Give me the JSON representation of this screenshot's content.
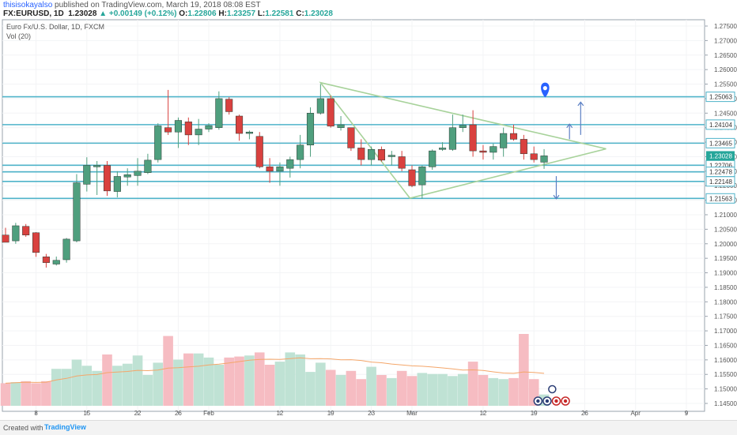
{
  "header": {
    "username": "thisisokayalso",
    "published_text": " published on TradingView.com, March 19, 2018 08:08 EST",
    "symbol": "FX:EURUSD, 1D",
    "last": "1.23028",
    "change": "+0.00149 (+0.12%)",
    "o_label": "O:",
    "o_value": "1.22806",
    "h_label": "H:",
    "h_value": "1.23257",
    "l_label": "L:",
    "l_value": "1.22581",
    "c_label": "C:",
    "c_value": "1.23028"
  },
  "legend": {
    "title": "Euro Fx/U.S. Dollar, 1D, FXCM",
    "volume": "Vol (20)"
  },
  "footer": {
    "created_with": "Created with",
    "brand": "TradingView"
  },
  "colors": {
    "up": "#4f9f7e",
    "down": "#d9413f",
    "vol_up": "#bfe2d4",
    "vol_down": "#f6bcc2",
    "hline": "#4fb3c9",
    "triangle": "#a7d29a",
    "ma": "#f4a66a",
    "arrow": "#5b7fc4",
    "pin": "#2962ff",
    "badge": "#26a69a"
  },
  "chart_data": {
    "type": "candlestick",
    "symbol": "EURUSD",
    "timeframe": "1D",
    "y_ticks": [
      "1.27500",
      "1.27000",
      "1.26500",
      "1.26000",
      "1.25500",
      "1.25000",
      "1.24500",
      "1.24000",
      "1.23500",
      "1.23000",
      "1.22500",
      "1.22000",
      "1.21500",
      "1.21000",
      "1.20500",
      "1.20000",
      "1.19500",
      "1.19000",
      "1.18500",
      "1.18000",
      "1.17500",
      "1.17000",
      "1.16500",
      "1.16000",
      "1.15500",
      "1.15000",
      "1.14500"
    ],
    "x_ticks": [
      {
        "label": "8",
        "index": 3
      },
      {
        "label": "15",
        "index": 8
      },
      {
        "label": "22",
        "index": 13
      },
      {
        "label": "26",
        "index": 17
      },
      {
        "label": "Feb",
        "index": 20
      },
      {
        "label": "12",
        "index": 27
      },
      {
        "label": "19",
        "index": 32
      },
      {
        "label": "23",
        "index": 36
      },
      {
        "label": "Mar",
        "index": 40
      },
      {
        "label": "12",
        "index": 47
      },
      {
        "label": "19",
        "index": 52
      },
      {
        "label": "26",
        "index": 57
      },
      {
        "label": "Apr",
        "index": 62
      },
      {
        "label": "9",
        "index": 67
      }
    ],
    "horizontal_levels": [
      "1.25063",
      "1.24104",
      "1.23465",
      "1.22706",
      "1.22478",
      "1.22148",
      "1.21563"
    ],
    "current_price": "1.23028",
    "candles": [
      {
        "o": 1.203,
        "h": 1.2055,
        "l": 1.201,
        "c": 1.2005,
        "v": 0.22
      },
      {
        "o": 1.201,
        "h": 1.2072,
        "l": 1.2,
        "c": 1.2062,
        "v": 0.23
      },
      {
        "o": 1.206,
        "h": 1.2068,
        "l": 1.2024,
        "c": 1.203,
        "v": 0.24
      },
      {
        "o": 1.2038,
        "h": 1.204,
        "l": 1.1955,
        "c": 1.197,
        "v": 0.22
      },
      {
        "o": 1.1955,
        "h": 1.1965,
        "l": 1.1918,
        "c": 1.1935,
        "v": 0.24
      },
      {
        "o": 1.193,
        "h": 1.1956,
        "l": 1.1925,
        "c": 1.1943,
        "v": 0.36
      },
      {
        "o": 1.1945,
        "h": 1.202,
        "l": 1.1935,
        "c": 1.2016,
        "v": 0.36
      },
      {
        "o": 1.201,
        "h": 1.224,
        "l": 1.2005,
        "c": 1.221,
        "v": 0.45
      },
      {
        "o": 1.2205,
        "h": 1.2298,
        "l": 1.218,
        "c": 1.227,
        "v": 0.39
      },
      {
        "o": 1.2265,
        "h": 1.2285,
        "l": 1.2168,
        "c": 1.227,
        "v": 0.34
      },
      {
        "o": 1.227,
        "h": 1.2285,
        "l": 1.2165,
        "c": 1.2182,
        "v": 0.5
      },
      {
        "o": 1.218,
        "h": 1.225,
        "l": 1.216,
        "c": 1.2232,
        "v": 0.39
      },
      {
        "o": 1.223,
        "h": 1.226,
        "l": 1.22,
        "c": 1.2238,
        "v": 0.41
      },
      {
        "o": 1.2235,
        "h": 1.2295,
        "l": 1.22,
        "c": 1.225,
        "v": 0.49
      },
      {
        "o": 1.2245,
        "h": 1.231,
        "l": 1.224,
        "c": 1.2288,
        "v": 0.3
      },
      {
        "o": 1.229,
        "h": 1.2415,
        "l": 1.228,
        "c": 1.2406,
        "v": 0.42
      },
      {
        "o": 1.24,
        "h": 1.253,
        "l": 1.2375,
        "c": 1.2385,
        "v": 0.68
      },
      {
        "o": 1.2385,
        "h": 1.2435,
        "l": 1.233,
        "c": 1.2425,
        "v": 0.45
      },
      {
        "o": 1.242,
        "h": 1.2435,
        "l": 1.234,
        "c": 1.2375,
        "v": 0.51
      },
      {
        "o": 1.2375,
        "h": 1.243,
        "l": 1.234,
        "c": 1.2395,
        "v": 0.51
      },
      {
        "o": 1.2395,
        "h": 1.2415,
        "l": 1.2385,
        "c": 1.2407,
        "v": 0.47
      },
      {
        "o": 1.24,
        "h": 1.2525,
        "l": 1.2393,
        "c": 1.25,
        "v": 0.4
      },
      {
        "o": 1.2498,
        "h": 1.2505,
        "l": 1.2445,
        "c": 1.2455,
        "v": 0.47
      },
      {
        "o": 1.244,
        "h": 1.2445,
        "l": 1.2355,
        "c": 1.238,
        "v": 0.48
      },
      {
        "o": 1.238,
        "h": 1.239,
        "l": 1.236,
        "c": 1.2385,
        "v": 0.49
      },
      {
        "o": 1.237,
        "h": 1.2385,
        "l": 1.226,
        "c": 1.2265,
        "v": 0.52
      },
      {
        "o": 1.2265,
        "h": 1.2295,
        "l": 1.221,
        "c": 1.225,
        "v": 0.4
      },
      {
        "o": 1.225,
        "h": 1.228,
        "l": 1.22,
        "c": 1.2265,
        "v": 0.43
      },
      {
        "o": 1.226,
        "h": 1.23,
        "l": 1.2228,
        "c": 1.229,
        "v": 0.52
      },
      {
        "o": 1.229,
        "h": 1.2375,
        "l": 1.226,
        "c": 1.234,
        "v": 0.5
      },
      {
        "o": 1.234,
        "h": 1.247,
        "l": 1.23,
        "c": 1.245,
        "v": 0.33
      },
      {
        "o": 1.245,
        "h": 1.255,
        "l": 1.2445,
        "c": 1.25,
        "v": 0.42
      },
      {
        "o": 1.25,
        "h": 1.251,
        "l": 1.24,
        "c": 1.2405,
        "v": 0.35
      },
      {
        "o": 1.24,
        "h": 1.244,
        "l": 1.239,
        "c": 1.241,
        "v": 0.3
      },
      {
        "o": 1.24,
        "h": 1.24,
        "l": 1.232,
        "c": 1.233,
        "v": 0.34
      },
      {
        "o": 1.233,
        "h": 1.236,
        "l": 1.227,
        "c": 1.229,
        "v": 0.26
      },
      {
        "o": 1.229,
        "h": 1.2335,
        "l": 1.227,
        "c": 1.2325,
        "v": 0.38
      },
      {
        "o": 1.2325,
        "h": 1.2335,
        "l": 1.2283,
        "c": 1.2288,
        "v": 0.3
      },
      {
        "o": 1.23,
        "h": 1.232,
        "l": 1.227,
        "c": 1.2305,
        "v": 0.27
      },
      {
        "o": 1.23,
        "h": 1.232,
        "l": 1.225,
        "c": 1.226,
        "v": 0.34
      },
      {
        "o": 1.2255,
        "h": 1.227,
        "l": 1.2195,
        "c": 1.22,
        "v": 0.29
      },
      {
        "o": 1.2203,
        "h": 1.227,
        "l": 1.2155,
        "c": 1.2265,
        "v": 0.32
      },
      {
        "o": 1.2265,
        "h": 1.2325,
        "l": 1.2255,
        "c": 1.232,
        "v": 0.31
      },
      {
        "o": 1.2325,
        "h": 1.235,
        "l": 1.232,
        "c": 1.233,
        "v": 0.31
      },
      {
        "o": 1.2325,
        "h": 1.2445,
        "l": 1.232,
        "c": 1.24,
        "v": 0.29
      },
      {
        "o": 1.24,
        "h": 1.2445,
        "l": 1.2385,
        "c": 1.2408,
        "v": 0.31
      },
      {
        "o": 1.241,
        "h": 1.246,
        "l": 1.23,
        "c": 1.232,
        "v": 0.43
      },
      {
        "o": 1.232,
        "h": 1.234,
        "l": 1.229,
        "c": 1.2315,
        "v": 0.3
      },
      {
        "o": 1.2315,
        "h": 1.2345,
        "l": 1.229,
        "c": 1.2335,
        "v": 0.27
      },
      {
        "o": 1.233,
        "h": 1.24,
        "l": 1.23,
        "c": 1.238,
        "v": 0.26
      },
      {
        "o": 1.238,
        "h": 1.241,
        "l": 1.2355,
        "c": 1.236,
        "v": 0.27
      },
      {
        "o": 1.236,
        "h": 1.2375,
        "l": 1.229,
        "c": 1.231,
        "v": 0.7
      },
      {
        "o": 1.231,
        "h": 1.2335,
        "l": 1.228,
        "c": 1.229,
        "v": 0.26
      },
      {
        "o": 1.2281,
        "h": 1.2326,
        "l": 1.2258,
        "c": 1.2303,
        "v": 0.11
      }
    ]
  }
}
